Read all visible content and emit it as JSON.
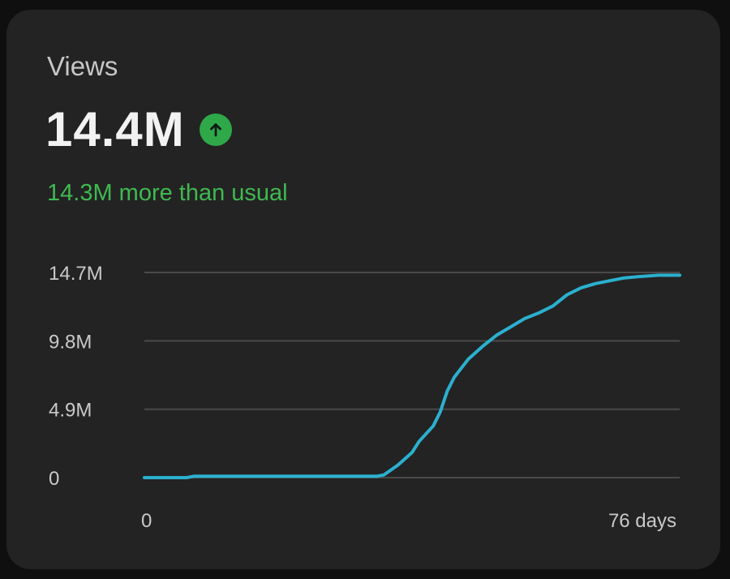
{
  "card": {
    "title": "Views",
    "value": "14.4M",
    "subtitle": "14.3M more than usual"
  },
  "icon": "arrow-up-icon",
  "colors": {
    "accent": "#2fa84a",
    "line": "#2bb0cf",
    "subtitle": "#3fb950"
  },
  "chart_data": {
    "type": "line",
    "x_unit": "days",
    "xlim": [
      0,
      76
    ],
    "ylim": [
      0,
      14.7
    ],
    "y_unit": "M",
    "y_ticks": [
      "0",
      "4.9M",
      "9.8M",
      "14.7M"
    ],
    "y_tick_values": [
      0,
      4.9,
      9.8,
      14.7
    ],
    "x_ticks": [
      "0",
      "76 days"
    ],
    "x_tick_values": [
      0,
      76
    ],
    "grid": true,
    "series": [
      {
        "values": [
          [
            0,
            0
          ],
          [
            6,
            0
          ],
          [
            7,
            0.1
          ],
          [
            33,
            0.1
          ],
          [
            34,
            0.2
          ],
          [
            36,
            0.9
          ],
          [
            38,
            1.8
          ],
          [
            39,
            2.6
          ],
          [
            41,
            3.7
          ],
          [
            42,
            4.7
          ],
          [
            43,
            6.2
          ],
          [
            44,
            7.2
          ],
          [
            46,
            8.5
          ],
          [
            48,
            9.4
          ],
          [
            50,
            10.2
          ],
          [
            52,
            10.8
          ],
          [
            54,
            11.4
          ],
          [
            56,
            11.8
          ],
          [
            58,
            12.3
          ],
          [
            60,
            13.1
          ],
          [
            62,
            13.6
          ],
          [
            64,
            13.9
          ],
          [
            66,
            14.1
          ],
          [
            68,
            14.3
          ],
          [
            70,
            14.4
          ],
          [
            73,
            14.5
          ],
          [
            76,
            14.5
          ]
        ]
      }
    ]
  }
}
